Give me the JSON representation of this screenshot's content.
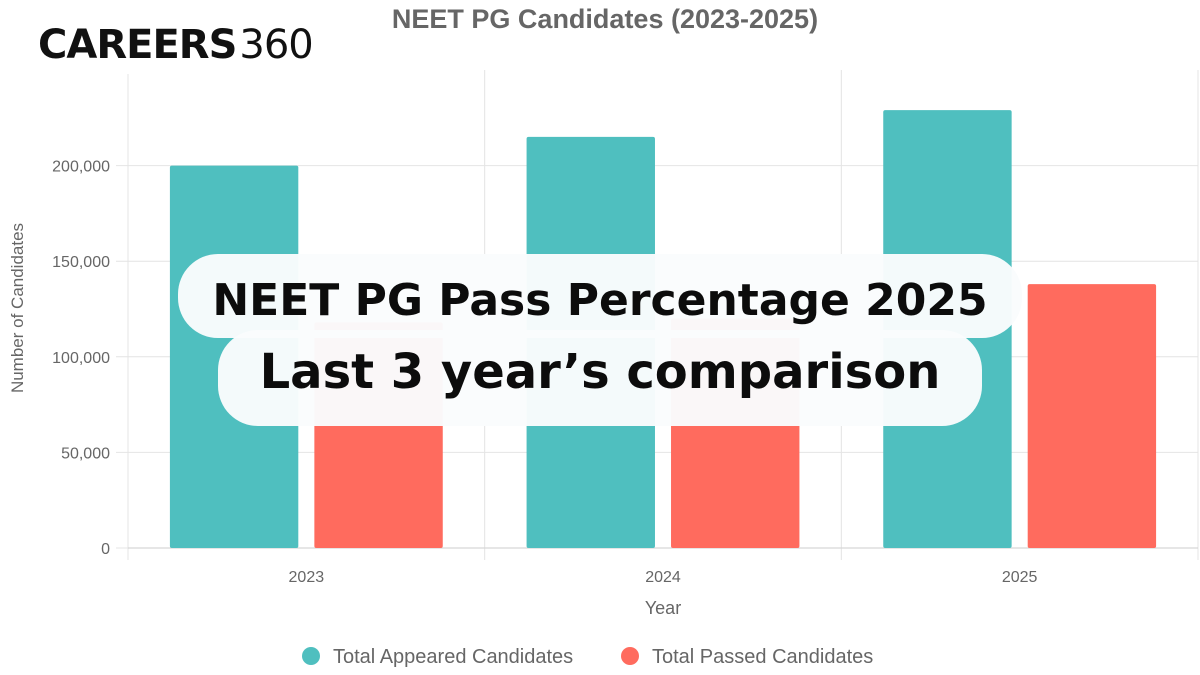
{
  "brand": {
    "logo_bold": "CAREERS",
    "logo_light": "360"
  },
  "overlay": {
    "line1": "NEET PG Pass Percentage 2025",
    "line2": "Last 3 year’s comparison"
  },
  "chart_data": {
    "type": "bar",
    "title": "NEET PG Candidates (2023-2025)",
    "xlabel": "Year",
    "ylabel": "Number of Candidates",
    "categories": [
      "2023",
      "2024",
      "2025"
    ],
    "series": [
      {
        "name": "Total Appeared Candidates",
        "color": "#4fbfbf",
        "values": [
          200000,
          215000,
          229000
        ]
      },
      {
        "name": "Total Passed Candidates",
        "color": "#ff6b5e",
        "values": [
          118000,
          120000,
          138000
        ]
      }
    ],
    "ylim": [
      0,
      250000
    ],
    "yticks": [
      0,
      50000,
      100000,
      150000,
      200000
    ],
    "ytick_labels": [
      "0",
      "50,000",
      "100,000",
      "150,000",
      "200,000"
    ],
    "grid": true,
    "legend": "bottom"
  }
}
